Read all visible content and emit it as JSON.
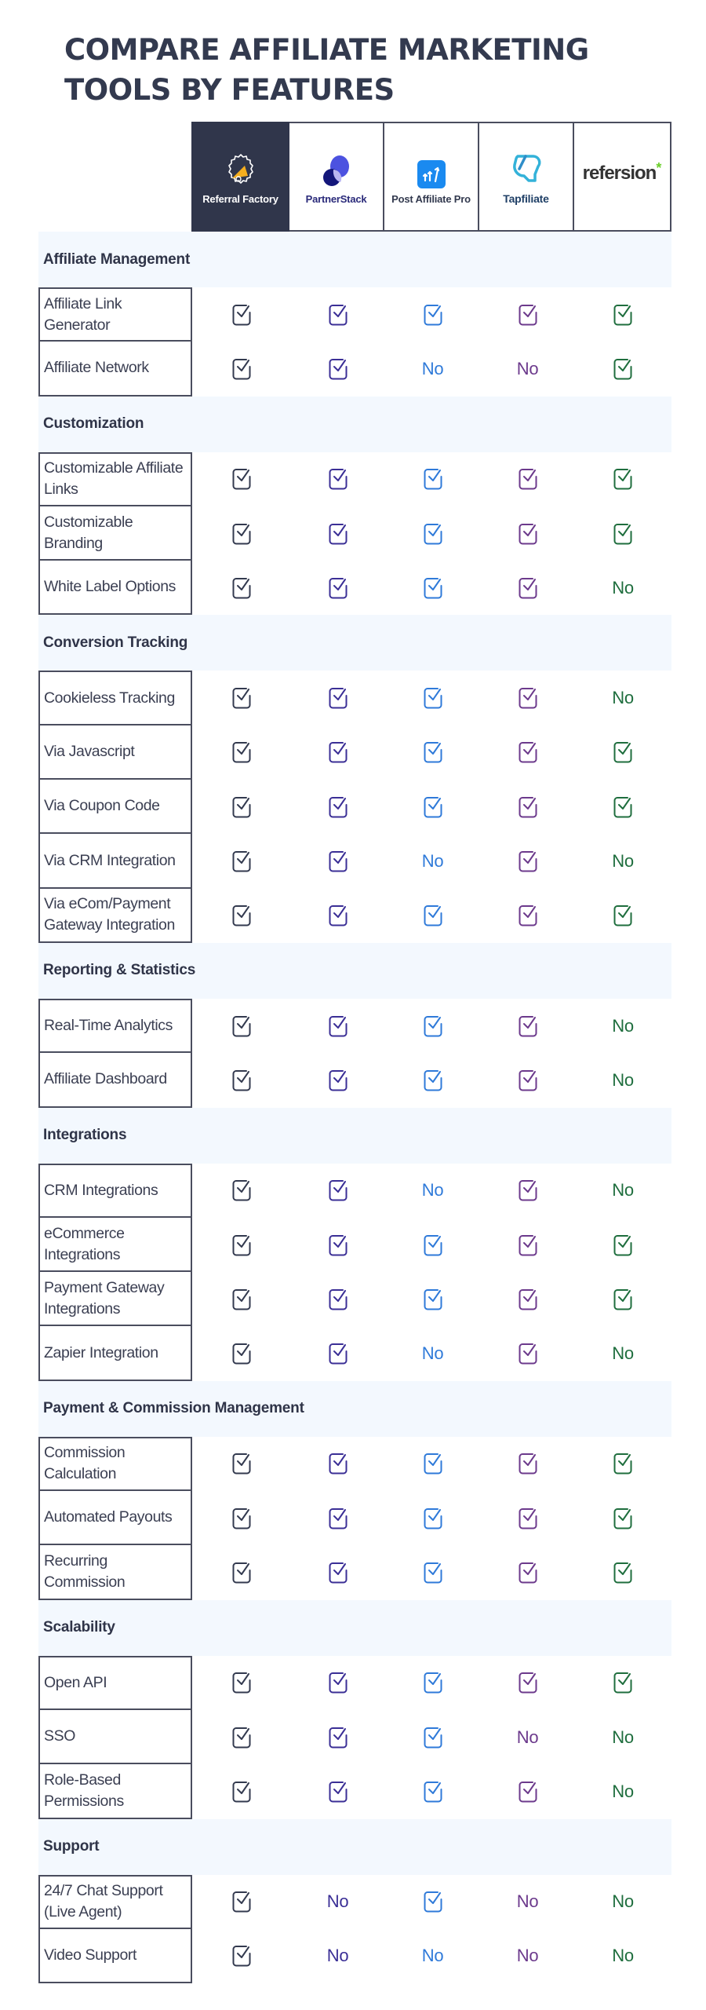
{
  "title": "COMPARE AFFILIATE MARKETING TOOLS BY FEATURES",
  "brands": [
    {
      "name": "Referral Factory",
      "logo": "referral-factory-megaphone-icon",
      "color": "#333a4f",
      "text_color": "#ffffff"
    },
    {
      "name": "PartnerStack",
      "logo": "partnerstack-circles-icon",
      "color": "#3b2f96",
      "text_color": "#2a2a7a"
    },
    {
      "name": "Post Affiliate Pro",
      "logo": "post-affiliate-pro-arrows-icon",
      "color": "#2f7ad9",
      "text_color": "#333a4f"
    },
    {
      "name": "Tapfiliate",
      "logo": "tapfiliate-bubble-icon",
      "color": "#6c3a8c",
      "text_color": "#1f3f66"
    },
    {
      "name": "refersion",
      "logo": "refersion-wordmark",
      "color": "#1f6e3e",
      "text_color": "#333333"
    }
  ],
  "yes_icon": "checkbox-check-icon",
  "no_label": "No",
  "sections": [
    {
      "title": "Affiliate Management",
      "rows": [
        {
          "feature": "Affiliate Link Generator",
          "values": [
            "yes",
            "yes",
            "yes",
            "yes",
            "yes"
          ]
        },
        {
          "feature": "Affiliate Network",
          "values": [
            "yes",
            "yes",
            "No",
            "No",
            "yes"
          ]
        }
      ]
    },
    {
      "title": "Customization",
      "rows": [
        {
          "feature": "Customizable Affiliate Links",
          "values": [
            "yes",
            "yes",
            "yes",
            "yes",
            "yes"
          ]
        },
        {
          "feature": "Customizable Branding",
          "values": [
            "yes",
            "yes",
            "yes",
            "yes",
            "yes"
          ]
        },
        {
          "feature": "White Label Options",
          "values": [
            "yes",
            "yes",
            "yes",
            "yes",
            "No"
          ]
        }
      ]
    },
    {
      "title": "Conversion Tracking",
      "rows": [
        {
          "feature": "Cookieless Tracking",
          "values": [
            "yes",
            "yes",
            "yes",
            "yes",
            "No"
          ]
        },
        {
          "feature": "Via Javascript",
          "values": [
            "yes",
            "yes",
            "yes",
            "yes",
            "yes"
          ]
        },
        {
          "feature": "Via Coupon Code",
          "values": [
            "yes",
            "yes",
            "yes",
            "yes",
            "yes"
          ]
        },
        {
          "feature": "Via CRM Integration",
          "values": [
            "yes",
            "yes",
            "No",
            "yes",
            "No"
          ]
        },
        {
          "feature": "Via eCom/Payment Gateway Integration",
          "values": [
            "yes",
            "yes",
            "yes",
            "yes",
            "yes"
          ]
        }
      ]
    },
    {
      "title": "Reporting & Statistics",
      "rows": [
        {
          "feature": "Real-Time Analytics",
          "values": [
            "yes",
            "yes",
            "yes",
            "yes",
            "No"
          ]
        },
        {
          "feature": "Affiliate Dashboard",
          "values": [
            "yes",
            "yes",
            "yes",
            "yes",
            "No"
          ]
        }
      ]
    },
    {
      "title": "Integrations",
      "rows": [
        {
          "feature": "CRM Integrations",
          "values": [
            "yes",
            "yes",
            "No",
            "yes",
            "No"
          ]
        },
        {
          "feature": "eCommerce Integrations",
          "values": [
            "yes",
            "yes",
            "yes",
            "yes",
            "yes"
          ]
        },
        {
          "feature": "Payment Gateway Integrations",
          "values": [
            "yes",
            "yes",
            "yes",
            "yes",
            "yes"
          ]
        },
        {
          "feature": "Zapier Integration",
          "values": [
            "yes",
            "yes",
            "No",
            "yes",
            "No"
          ]
        }
      ]
    },
    {
      "title": "Payment & Commission Management",
      "rows": [
        {
          "feature": "Commission Calculation",
          "values": [
            "yes",
            "yes",
            "yes",
            "yes",
            "yes"
          ]
        },
        {
          "feature": "Automated Payouts",
          "values": [
            "yes",
            "yes",
            "yes",
            "yes",
            "yes"
          ]
        },
        {
          "feature": "Recurring Commission",
          "values": [
            "yes",
            "yes",
            "yes",
            "yes",
            "yes"
          ]
        }
      ]
    },
    {
      "title": "Scalability",
      "rows": [
        {
          "feature": "Open API",
          "values": [
            "yes",
            "yes",
            "yes",
            "yes",
            "yes"
          ]
        },
        {
          "feature": "SSO",
          "values": [
            "yes",
            "yes",
            "yes",
            "No",
            "No"
          ]
        },
        {
          "feature": "Role-Based Permissions",
          "values": [
            "yes",
            "yes",
            "yes",
            "yes",
            "No"
          ]
        }
      ]
    },
    {
      "title": "Support",
      "rows": [
        {
          "feature": "24/7 Chat Support (Live Agent)",
          "values": [
            "yes",
            "No",
            "yes",
            "No",
            "No"
          ]
        },
        {
          "feature": "Video Support",
          "values": [
            "yes",
            "No",
            "No",
            "No",
            "No"
          ]
        }
      ]
    }
  ]
}
